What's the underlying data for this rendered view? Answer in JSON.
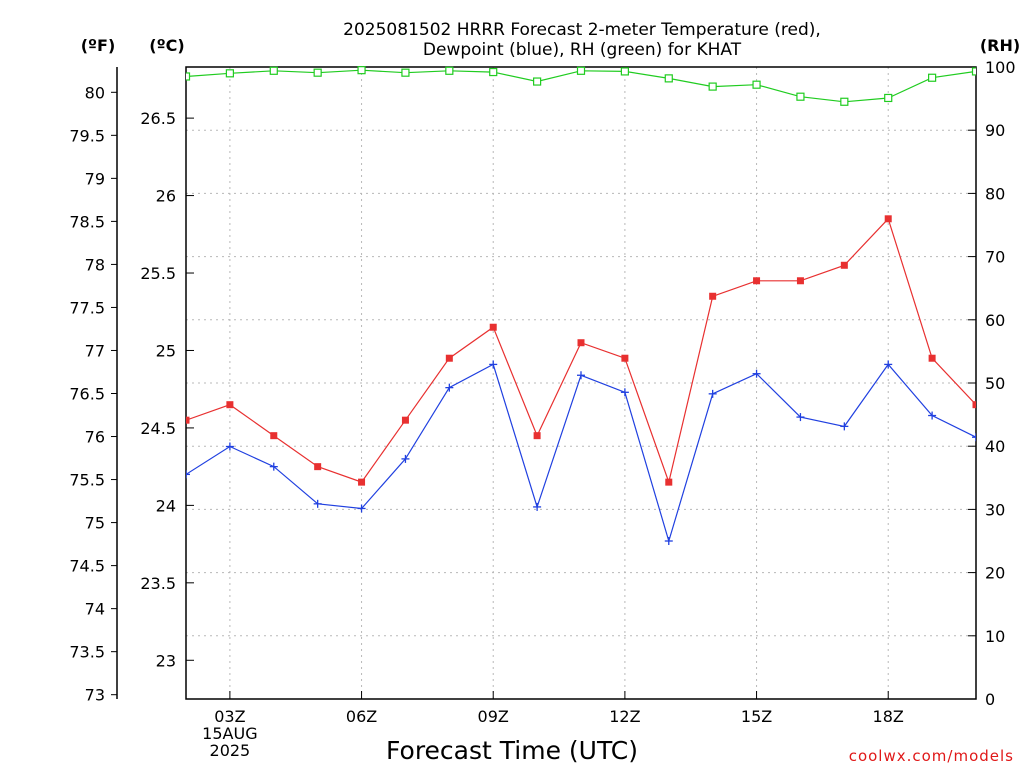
{
  "chart_data": {
    "type": "line",
    "title_line1": "2025081502 HRRR Forecast 2-meter Temperature (red),",
    "title_line2": "Dewpoint (blue), RH (green) for KHAT",
    "xlabel": "Forecast Time (UTC)",
    "left_outer_unit": "(ºF)",
    "left_inner_unit": "(ºC)",
    "right_unit": "(RH)",
    "credit": "coolwx.com/models",
    "x_hours": [
      2,
      3,
      4,
      5,
      6,
      7,
      8,
      9,
      10,
      11,
      12,
      13,
      14,
      15,
      16,
      17,
      18,
      19,
      20
    ],
    "x_ticks": [
      {
        "hour": 3,
        "lines": [
          "03Z",
          "15AUG",
          "2025"
        ]
      },
      {
        "hour": 6,
        "lines": [
          "06Z"
        ]
      },
      {
        "hour": 9,
        "lines": [
          "09Z"
        ]
      },
      {
        "hour": 12,
        "lines": [
          "12Z"
        ]
      },
      {
        "hour": 15,
        "lines": [
          "15Z"
        ]
      },
      {
        "hour": 18,
        "lines": [
          "18Z"
        ]
      }
    ],
    "xlim": [
      2,
      20
    ],
    "ylim_celsius": [
      22.75,
      26.83
    ],
    "ylim_rh": [
      0,
      100
    ],
    "celsius_ticks": [
      "23",
      "23.5",
      "24",
      "24.5",
      "25",
      "25.5",
      "26",
      "26.5"
    ],
    "fahrenheit_ticks": [
      "73",
      "73.5",
      "74",
      "74.5",
      "75",
      "75.5",
      "76",
      "76.5",
      "77",
      "77.5",
      "78",
      "78.5",
      "79",
      "79.5",
      "80"
    ],
    "rh_ticks": [
      "0",
      "10",
      "20",
      "30",
      "40",
      "50",
      "60",
      "70",
      "80",
      "90",
      "100"
    ],
    "grid": true,
    "series": [
      {
        "name": "Temperature",
        "axis": "celsius",
        "color": "#e83030",
        "marker": "filled-square",
        "values": [
          24.55,
          24.65,
          24.45,
          24.25,
          24.15,
          24.55,
          24.95,
          25.15,
          24.45,
          25.05,
          24.95,
          24.15,
          25.35,
          25.45,
          25.45,
          25.55,
          25.85,
          24.95,
          24.65
        ]
      },
      {
        "name": "Dewpoint",
        "axis": "celsius",
        "color": "#2040e0",
        "marker": "plus",
        "values": [
          24.2,
          24.38,
          24.25,
          24.01,
          23.98,
          24.3,
          24.76,
          24.91,
          23.99,
          24.84,
          24.73,
          23.77,
          24.72,
          24.85,
          24.57,
          24.51,
          24.91,
          24.58,
          24.44
        ]
      },
      {
        "name": "RH",
        "axis": "rh",
        "color": "#20cc20",
        "marker": "open-square",
        "values": [
          98.5,
          99,
          99.4,
          99.1,
          99.5,
          99.1,
          99.4,
          99.2,
          97.7,
          99.4,
          99.3,
          98.2,
          96.9,
          97.2,
          95.3,
          94.5,
          95.1,
          98.3,
          99.3
        ]
      }
    ]
  }
}
